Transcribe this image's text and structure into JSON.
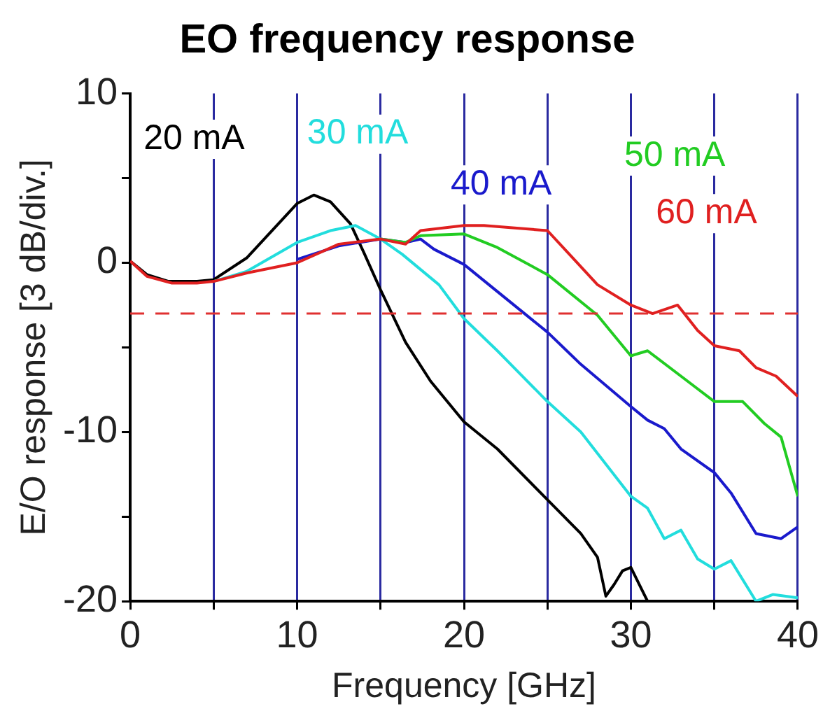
{
  "chart_data": {
    "type": "line",
    "title": "EO frequency response",
    "xlabel": "Frequency [GHz]",
    "ylabel": "E/O response [3 dB/div.]",
    "xlim": [
      0,
      40
    ],
    "xticks": [
      0,
      {
        "value": 5,
        "label": null
      },
      10,
      {
        "value": 15,
        "label": null
      },
      20,
      {
        "value": 25,
        "label": null
      },
      30,
      {
        "value": 35,
        "label": null
      },
      40
    ],
    "ylim": [
      -20,
      10
    ],
    "yticks": [
      -20,
      {
        "value": -15,
        "label": null
      },
      -10,
      {
        "value": -5,
        "label": null
      },
      0,
      {
        "value": 5,
        "label": null
      },
      10
    ],
    "grid": "x",
    "legend": false,
    "marker": "none",
    "line_style": "solid",
    "ref_lines": [
      {
        "axis": "y",
        "value": -3,
        "color": "#e03030",
        "line_style": "dashed"
      }
    ],
    "series": [
      {
        "name": "20 mA",
        "color": "#000000",
        "x": [
          0,
          1,
          2.3,
          4,
          5,
          7,
          10,
          11,
          12,
          13.2,
          14,
          15,
          16.5,
          18,
          20,
          22,
          25,
          27,
          28,
          28.5,
          29,
          29.5,
          30,
          30.5,
          31
        ],
        "values": [
          0.1,
          -0.7,
          -1.1,
          -1.1,
          -1,
          0.3,
          3.5,
          4,
          3.6,
          2.3,
          0.6,
          -1.6,
          -4.7,
          -7,
          -9.4,
          -11,
          -14,
          -16,
          -17.4,
          -19.7,
          -19,
          -18.2,
          -18,
          -19,
          -20
        ]
      },
      {
        "name": "30 mA",
        "color": "#22dddd",
        "x": [
          5,
          7,
          10,
          12,
          13.5,
          15,
          16.3,
          18.5,
          20,
          22,
          25,
          27,
          30,
          31,
          32,
          33,
          34,
          35,
          36,
          37.5,
          38.5,
          40
        ],
        "values": [
          -1.1,
          -0.5,
          1.2,
          1.9,
          2.2,
          1.4,
          0.5,
          -1.3,
          -3.3,
          -5.2,
          -8.2,
          -10,
          -13.8,
          -14.5,
          -16.3,
          -15.8,
          -17.5,
          -18.1,
          -17.6,
          -20,
          -19.6,
          -19.8
        ]
      },
      {
        "name": "40 mA",
        "color": "#1a1acc",
        "x": [
          10,
          12.5,
          15,
          16.5,
          17.4,
          18.2,
          20,
          22,
          25,
          27,
          30,
          31,
          32,
          33,
          35,
          36,
          37.5,
          39,
          40
        ],
        "values": [
          0.2,
          1,
          1.4,
          1.2,
          1.4,
          0.8,
          -0.1,
          -1.7,
          -4.1,
          -6,
          -8.5,
          -9.3,
          -9.8,
          -11,
          -12.4,
          -13.6,
          -16,
          -16.3,
          -15.6
        ]
      },
      {
        "name": "50 mA",
        "color": "#22cc22",
        "x": [
          15,
          16.5,
          17.4,
          20,
          22,
          25,
          28,
          30,
          31,
          33,
          35,
          36.7,
          38,
          39,
          40
        ],
        "values": [
          1.4,
          1.2,
          1.6,
          1.7,
          0.9,
          -0.7,
          -3.1,
          -5.5,
          -5.2,
          -6.7,
          -8.2,
          -8.2,
          -9.5,
          -10.3,
          -13.8
        ]
      },
      {
        "name": "60 mA",
        "color": "#e02020",
        "x": [
          0,
          1,
          2.5,
          4,
          5,
          7,
          10,
          12.5,
          15,
          16.5,
          17.4,
          20,
          21.2,
          25,
          26.5,
          28,
          30,
          31.3,
          32.8,
          34,
          35,
          36.5,
          37.5,
          38.7,
          40
        ],
        "values": [
          0.1,
          -0.8,
          -1.2,
          -1.2,
          -1.1,
          -0.6,
          0,
          1.1,
          1.4,
          1.1,
          1.9,
          2.2,
          2.2,
          1.9,
          0.3,
          -1.3,
          -2.5,
          -3,
          -2.5,
          -4,
          -4.9,
          -5.2,
          -6.2,
          -6.7,
          -7.9
        ]
      }
    ]
  }
}
